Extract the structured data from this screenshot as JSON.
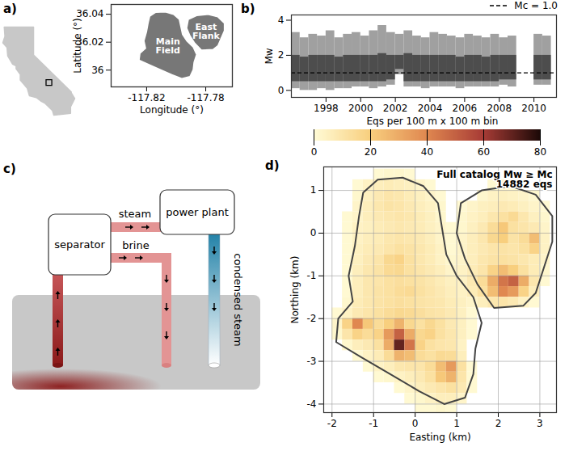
{
  "chart_data": [
    {
      "type": "map",
      "panel": "a)",
      "state_outline": [
        [
          -124.2,
          42.0
        ],
        [
          -120.0,
          42.0
        ],
        [
          -120.0,
          39.0
        ],
        [
          -114.6,
          35.0
        ],
        [
          -114.6,
          34.9
        ],
        [
          -114.1,
          34.3
        ],
        [
          -114.7,
          33.4
        ],
        [
          -114.7,
          32.7
        ],
        [
          -117.1,
          32.5
        ],
        [
          -117.3,
          33.0
        ],
        [
          -118.4,
          33.8
        ],
        [
          -118.9,
          34.0
        ],
        [
          -119.6,
          34.4
        ],
        [
          -120.6,
          34.6
        ],
        [
          -120.9,
          35.4
        ],
        [
          -121.9,
          36.3
        ],
        [
          -121.9,
          36.9
        ],
        [
          -122.5,
          37.5
        ],
        [
          -122.5,
          37.8
        ],
        [
          -123.0,
          38.0
        ],
        [
          -123.7,
          38.9
        ],
        [
          -123.8,
          39.8
        ],
        [
          -124.4,
          40.3
        ],
        [
          -124.1,
          41.0
        ]
      ],
      "site": [
        -117.8,
        36.02
      ]
    },
    {
      "type": "map",
      "xlabel": "Longitude (°)",
      "ylabel": "Latitude (°)",
      "xlim": [
        -117.844,
        -117.762
      ],
      "ylim": [
        35.988,
        36.047
      ],
      "xticks": [
        -117.82,
        -117.78
      ],
      "yticks": [
        36,
        36.02,
        36.04
      ],
      "fields": [
        {
          "name": "Main Field",
          "outline": [
            [
              -117.814,
              36.0413
            ],
            [
              -117.8073,
              36.0417
            ],
            [
              -117.8018,
              36.0399
            ],
            [
              -117.7979,
              36.0363
            ],
            [
              -117.7968,
              36.0309
            ],
            [
              -117.7957,
              36.0255
            ],
            [
              -117.7929,
              36.021
            ],
            [
              -117.7885,
              36.0165
            ],
            [
              -117.7862,
              36.0111
            ],
            [
              -117.7879,
              36.0057
            ],
            [
              -117.7885,
              36.0003
            ],
            [
              -117.7907,
              35.9954
            ],
            [
              -117.7962,
              35.994
            ],
            [
              -117.8029,
              35.9967
            ],
            [
              -117.8107,
              36.0003
            ],
            [
              -117.8184,
              36.0039
            ],
            [
              -117.8251,
              36.0071
            ],
            [
              -117.8245,
              36.012
            ],
            [
              -117.8207,
              36.0156
            ],
            [
              -117.8218,
              36.021
            ],
            [
              -117.8201,
              36.0273
            ],
            [
              -117.819,
              36.0336
            ],
            [
              -117.8179,
              36.0386
            ]
          ]
        },
        {
          "name": "East Flank",
          "outline": [
            [
              -117.7918,
              36.0363
            ],
            [
              -117.7862,
              36.039
            ],
            [
              -117.7785,
              36.0399
            ],
            [
              -117.7718,
              36.0381
            ],
            [
              -117.7674,
              36.0336
            ],
            [
              -117.7674,
              36.0282
            ],
            [
              -117.7696,
              36.0228
            ],
            [
              -117.7718,
              36.0174
            ],
            [
              -117.7751,
              36.0147
            ],
            [
              -117.7829,
              36.0143
            ],
            [
              -117.7874,
              36.0192
            ],
            [
              -117.7907,
              36.0246
            ],
            [
              -117.7929,
              36.03
            ]
          ]
        }
      ]
    },
    {
      "type": "range",
      "panel": "b)",
      "ylabel": "Mw",
      "xlim": [
        1996,
        2011.3
      ],
      "ylim": [
        -0.4,
        4.3
      ],
      "xticks": [
        1998,
        2000,
        2002,
        2004,
        2006,
        2008,
        2010
      ],
      "yticks": [
        0,
        2,
        4
      ],
      "bins": [
        1996,
        1996.5,
        1997,
        1997.5,
        1998,
        1998.5,
        1999,
        1999.5,
        2000,
        2000.5,
        2001,
        2001.5,
        2002,
        2002.5,
        2003,
        2003.5,
        2004,
        2004.5,
        2005,
        2005.5,
        2006,
        2006.5,
        2007,
        2007.5,
        2008,
        2008.5,
        2009,
        2009.5,
        2010,
        2010.5,
        2011
      ],
      "mw_min": [
        0.1,
        0.0,
        0.0,
        0.1,
        0.0,
        0.1,
        0.1,
        0.2,
        0.2,
        0.1,
        0.2,
        0.3,
        0.9,
        0.2,
        0.2,
        0.1,
        0.2,
        0.2,
        0.2,
        0.1,
        0.2,
        0.2,
        0.2,
        0.2,
        0.3,
        0.2,
        null,
        null,
        0.3,
        0.3
      ],
      "mw_max": [
        3.3,
        3.0,
        3.2,
        3.1,
        3.4,
        3.0,
        3.2,
        3.3,
        3.1,
        3.4,
        3.7,
        3.3,
        3.2,
        3.4,
        3.1,
        3.0,
        3.3,
        3.2,
        3.1,
        3.0,
        3.2,
        3.1,
        3.0,
        3.2,
        3.0,
        3.1,
        null,
        null,
        3.2,
        3.1
      ],
      "mw_dense_min": [
        0.5,
        0.5,
        0.5,
        0.5,
        0.5,
        0.5,
        0.5,
        0.5,
        0.5,
        0.5,
        0.5,
        0.6,
        1.2,
        0.5,
        0.5,
        0.5,
        0.5,
        0.5,
        0.5,
        0.5,
        0.5,
        0.5,
        0.5,
        0.5,
        0.6,
        0.6,
        null,
        null,
        0.6,
        0.6
      ],
      "mw_dense_max": [
        2.0,
        1.9,
        2.0,
        2.0,
        2.0,
        1.9,
        2.0,
        2.0,
        2.0,
        2.0,
        2.1,
        2.0,
        2.0,
        2.1,
        2.0,
        2.0,
        2.0,
        2.0,
        2.0,
        1.9,
        2.0,
        2.0,
        1.9,
        2.0,
        2.0,
        2.0,
        null,
        null,
        2.0,
        2.0
      ],
      "reference_line": {
        "value": 1.0,
        "label": "Mc = 1.0",
        "line_style": "dashed"
      },
      "legend": "top-right"
    },
    {
      "type": "heatmap",
      "panel": "d)",
      "xlabel": "Easting (km)",
      "ylabel": "Northing (km)",
      "xlim": [
        -2.2,
        3.4
      ],
      "ylim": [
        -4.2,
        1.55
      ],
      "xticks": [
        -2,
        -1,
        0,
        1,
        2,
        3
      ],
      "yticks": [
        -4,
        -3,
        -2,
        -1,
        0,
        1
      ],
      "grid": true,
      "annotation": [
        "Full catalog Mw ≥ Mc",
        "14882 eqs"
      ],
      "color_label": "Eqs per 100 m x 100 m bin",
      "color_range": [
        0,
        80
      ],
      "color_ticks": [
        0,
        20,
        40,
        60,
        80
      ],
      "x_bins": [
        -2.25,
        -2,
        -1.75,
        -1.5,
        -1.25,
        -1,
        -0.75,
        -0.5,
        -0.25,
        0,
        0.25,
        0.5,
        0.75,
        1,
        1.25,
        1.5,
        1.75,
        2,
        2.25,
        2.5,
        2.75,
        3,
        3.25,
        3.5
      ],
      "y_bins": [
        1.5,
        1.25,
        1,
        0.75,
        0.5,
        0.25,
        0,
        -0.25,
        -0.5,
        -0.75,
        -1,
        -1.25,
        -1.5,
        -1.75,
        -2,
        -2.25,
        -2.5,
        -2.75,
        -3,
        -3.25,
        -3.5,
        -3.75,
        -4,
        -4.25
      ],
      "counts": [
        [
          0,
          0,
          0,
          0,
          0,
          1,
          2,
          2,
          1,
          0,
          0,
          0,
          0,
          0,
          0,
          0,
          0,
          0,
          0,
          0,
          0,
          0,
          0
        ],
        [
          0,
          0,
          0,
          1,
          4,
          6,
          7,
          6,
          5,
          3,
          1,
          0,
          0,
          0,
          0,
          0,
          1,
          1,
          1,
          0,
          0,
          0,
          0
        ],
        [
          0,
          0,
          0,
          2,
          5,
          8,
          10,
          9,
          7,
          5,
          3,
          1,
          0,
          0,
          0,
          2,
          4,
          5,
          4,
          3,
          2,
          0,
          0
        ],
        [
          0,
          0,
          0,
          3,
          6,
          9,
          11,
          10,
          8,
          6,
          4,
          2,
          0,
          1,
          3,
          5,
          6,
          8,
          7,
          5,
          3,
          1,
          0
        ],
        [
          0,
          0,
          1,
          3,
          6,
          8,
          9,
          10,
          9,
          7,
          5,
          2,
          0,
          2,
          4,
          6,
          9,
          12,
          15,
          9,
          5,
          2,
          0
        ],
        [
          0,
          0,
          1,
          4,
          5,
          7,
          8,
          9,
          8,
          7,
          5,
          3,
          1,
          2,
          5,
          8,
          14,
          22,
          12,
          10,
          8,
          3,
          0
        ],
        [
          0,
          0,
          1,
          4,
          6,
          7,
          9,
          10,
          9,
          8,
          6,
          3,
          1,
          3,
          6,
          9,
          16,
          20,
          11,
          14,
          25,
          4,
          0
        ],
        [
          0,
          0,
          1,
          5,
          7,
          8,
          10,
          12,
          11,
          9,
          7,
          4,
          1,
          3,
          6,
          8,
          10,
          11,
          10,
          12,
          18,
          4,
          0
        ],
        [
          0,
          0,
          1,
          5,
          8,
          10,
          16,
          18,
          12,
          9,
          7,
          4,
          2,
          3,
          6,
          9,
          11,
          12,
          11,
          9,
          7,
          3,
          0
        ],
        [
          0,
          0,
          1,
          6,
          9,
          11,
          15,
          16,
          12,
          10,
          8,
          6,
          3,
          4,
          7,
          10,
          18,
          25,
          20,
          12,
          7,
          2,
          0
        ],
        [
          0,
          0,
          1,
          6,
          9,
          10,
          12,
          13,
          12,
          11,
          9,
          7,
          5,
          4,
          8,
          14,
          30,
          45,
          50,
          30,
          9,
          1,
          0
        ],
        [
          0,
          0,
          1,
          6,
          9,
          11,
          12,
          14,
          15,
          12,
          10,
          8,
          6,
          4,
          7,
          12,
          25,
          40,
          35,
          18,
          6,
          0,
          0
        ],
        [
          0,
          0,
          2,
          7,
          9,
          11,
          12,
          13,
          12,
          11,
          10,
          9,
          7,
          5,
          3,
          6,
          9,
          10,
          8,
          4,
          1,
          0,
          0
        ],
        [
          0,
          1,
          4,
          8,
          10,
          12,
          14,
          16,
          15,
          13,
          11,
          10,
          8,
          5,
          1,
          0,
          0,
          0,
          0,
          0,
          0,
          0,
          0
        ],
        [
          0,
          3,
          18,
          40,
          22,
          14,
          20,
          28,
          16,
          12,
          16,
          12,
          8,
          5,
          1,
          0,
          0,
          0,
          0,
          0,
          0,
          0,
          0
        ],
        [
          0,
          2,
          10,
          18,
          14,
          18,
          35,
          50,
          30,
          16,
          18,
          12,
          9,
          5,
          1,
          0,
          0,
          0,
          0,
          0,
          0,
          0,
          0
        ],
        [
          0,
          0,
          2,
          6,
          8,
          12,
          30,
          70,
          45,
          18,
          12,
          10,
          9,
          4,
          0,
          0,
          0,
          0,
          0,
          0,
          0,
          0,
          0
        ],
        [
          0,
          0,
          0,
          1,
          4,
          7,
          14,
          28,
          25,
          14,
          12,
          15,
          14,
          6,
          0,
          0,
          0,
          0,
          0,
          0,
          0,
          0,
          0
        ],
        [
          0,
          0,
          0,
          0,
          1,
          4,
          6,
          9,
          10,
          10,
          14,
          25,
          35,
          12,
          1,
          0,
          0,
          0,
          0,
          0,
          0,
          0,
          0
        ],
        [
          0,
          0,
          0,
          0,
          0,
          1,
          2,
          4,
          6,
          8,
          12,
          22,
          28,
          10,
          1,
          0,
          0,
          0,
          0,
          0,
          0,
          0,
          0
        ],
        [
          0,
          0,
          0,
          0,
          0,
          0,
          0,
          1,
          3,
          6,
          8,
          10,
          12,
          8,
          1,
          0,
          0,
          0,
          0,
          0,
          0,
          0,
          0
        ],
        [
          0,
          0,
          0,
          0,
          0,
          0,
          0,
          0,
          1,
          2,
          4,
          6,
          6,
          3,
          0,
          0,
          0,
          0,
          0,
          0,
          0,
          0,
          0
        ],
        [
          0,
          0,
          0,
          0,
          0,
          0,
          0,
          0,
          0,
          1,
          1,
          2,
          1,
          0,
          0,
          0,
          0,
          0,
          0,
          0,
          0,
          0,
          0
        ]
      ],
      "outlines": [
        [
          [
            -0.9,
            1.25
          ],
          [
            -0.3,
            1.3
          ],
          [
            0.2,
            1.1
          ],
          [
            0.55,
            0.7
          ],
          [
            0.65,
            0.1
          ],
          [
            0.75,
            -0.5
          ],
          [
            1.0,
            -1.0
          ],
          [
            1.4,
            -1.5
          ],
          [
            1.6,
            -2.1
          ],
          [
            1.45,
            -2.7
          ],
          [
            1.4,
            -3.3
          ],
          [
            1.2,
            -3.85
          ],
          [
            0.7,
            -4.0
          ],
          [
            0.1,
            -3.7
          ],
          [
            -0.6,
            -3.3
          ],
          [
            -1.3,
            -2.9
          ],
          [
            -1.9,
            -2.55
          ],
          [
            -1.85,
            -2.0
          ],
          [
            -1.5,
            -1.6
          ],
          [
            -1.6,
            -1.0
          ],
          [
            -1.45,
            -0.3
          ],
          [
            -1.35,
            0.4
          ],
          [
            -1.25,
            0.95
          ]
        ],
        [
          [
            1.1,
            0.7
          ],
          [
            1.6,
            1.0
          ],
          [
            2.3,
            1.1
          ],
          [
            2.9,
            0.9
          ],
          [
            3.3,
            0.4
          ],
          [
            3.3,
            -0.2
          ],
          [
            3.1,
            -0.8
          ],
          [
            2.9,
            -1.4
          ],
          [
            2.6,
            -1.7
          ],
          [
            1.9,
            -1.75
          ],
          [
            1.5,
            -1.2
          ],
          [
            1.2,
            -0.6
          ],
          [
            1.0,
            0.0
          ]
        ]
      ]
    }
  ],
  "diagram": {
    "panel": "c)",
    "boxes": [
      "separator",
      "power plant"
    ],
    "pipes": [
      "steam",
      "brine",
      "condensed steam"
    ]
  }
}
